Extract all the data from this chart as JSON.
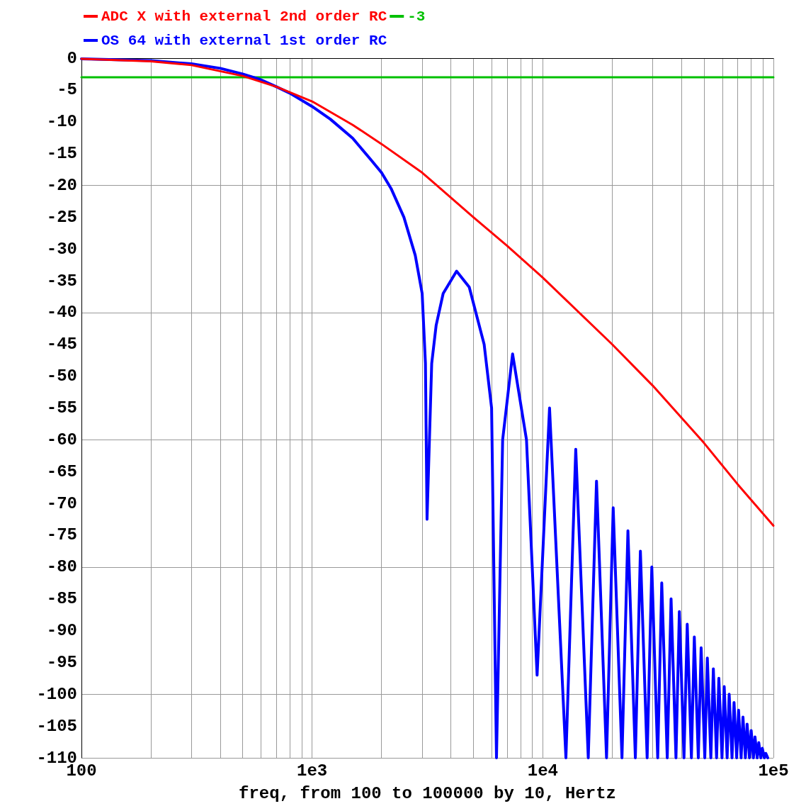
{
  "chart_data": {
    "type": "line",
    "xlabel": "freq, from 100 to 100000 by 10, Hertz",
    "log": "x",
    "grid": true,
    "legend": "top left",
    "marker": "none",
    "line_style": "solid",
    "xlim": [
      100,
      100000
    ],
    "xticks": [
      100,
      {
        "value": 1000,
        "label": "1e3"
      },
      {
        "value": 10000,
        "label": "1e4"
      },
      {
        "value": 100000,
        "label": "1e5"
      }
    ],
    "ylim": [
      -110,
      0
    ],
    "yticks": [
      -110,
      -105,
      -100,
      -95,
      -90,
      -85,
      -80,
      -75,
      -70,
      -65,
      -60,
      -55,
      -50,
      -45,
      -40,
      -35,
      -30,
      -25,
      -20,
      -15,
      -10,
      -5,
      0
    ],
    "series": [
      {
        "name": "ADC X with external 2nd order RC",
        "color": "#ff0000",
        "x": [
          100,
          200,
          300,
          500,
          700,
          1000,
          1500,
          2000,
          3000,
          5000,
          7000,
          10000,
          20000,
          30000,
          50000,
          70000,
          100000
        ],
        "values": [
          -0.1,
          -0.5,
          -1.1,
          -2.8,
          -4.5,
          -6.8,
          -10.5,
          -13.5,
          -18,
          -25,
          -29.5,
          -34.5,
          -45,
          -51.5,
          -60.5,
          -67,
          -73.5
        ]
      },
      {
        "name": "-3",
        "color": "#00c000",
        "x": [
          100,
          100000
        ],
        "values": [
          -3,
          -3
        ]
      },
      {
        "name": "OS 64 with external 1st order RC",
        "color": "#0000ff",
        "x": [
          100,
          200,
          300,
          400,
          500,
          600,
          700,
          800,
          1000,
          1200,
          1500,
          1800,
          2000,
          2200,
          2500,
          2800,
          3000,
          3100,
          3150,
          3300,
          3450,
          3700,
          4230,
          4800,
          5570,
          6000,
          6300,
          6700,
          7400,
          8500,
          9450,
          10700,
          12600,
          13900,
          15750,
          17100,
          18900,
          20200,
          22050,
          23400,
          25200,
          26500,
          28350,
          29700,
          31500,
          32800,
          34650,
          36000,
          37800,
          39100,
          40950,
          42300,
          44100,
          45400,
          47250,
          48600,
          50400,
          51700,
          53550,
          54900,
          56700,
          58000,
          59850,
          61200,
          63000,
          64300,
          66150,
          67500,
          69300,
          70600,
          72450,
          73800,
          75600,
          76900,
          78750,
          80100,
          81900,
          83200,
          85050,
          86400,
          88200,
          89500,
          91350,
          92700,
          94500
        ],
        "values": [
          -0.1,
          -0.4,
          -0.9,
          -1.6,
          -2.5,
          -3.4,
          -4.5,
          -5.5,
          -7.6,
          -9.6,
          -12.6,
          -16,
          -18,
          -20.5,
          -25,
          -31,
          -37,
          -48,
          -72.5,
          -48,
          -42,
          -37,
          -33.5,
          -36,
          -45,
          -55,
          -110,
          -60,
          -46.5,
          -60,
          -97,
          -55,
          -110,
          -61.5,
          -110,
          -66.5,
          -110,
          -70.7,
          -110,
          -74.3,
          -110,
          -77.5,
          -110,
          -80,
          -110,
          -82.5,
          -110,
          -85,
          -110,
          -87,
          -110,
          -89,
          -110,
          -91,
          -110,
          -92.7,
          -110,
          -94.3,
          -110,
          -96,
          -110,
          -97.5,
          -110,
          -98.8,
          -110,
          -100,
          -110,
          -101.3,
          -110,
          -102.5,
          -110,
          -103.6,
          -110,
          -104.7,
          -110,
          -105.7,
          -110,
          -106.7,
          -110,
          -107.6,
          -110,
          -108.5,
          -110,
          -109.3,
          -110
        ]
      }
    ]
  }
}
